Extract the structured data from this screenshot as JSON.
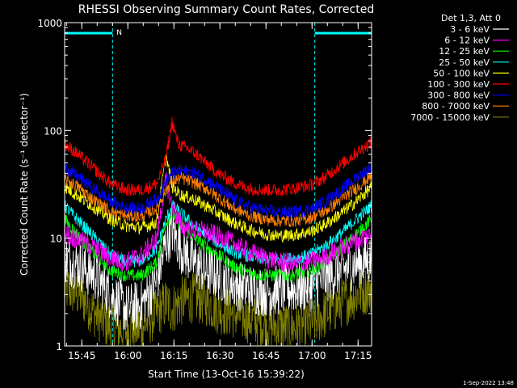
{
  "footer": {
    "timestamp": "1-Sep-2022 13:48"
  },
  "chart_data": {
    "type": "line",
    "title": "RHESSI Observing Summary Count Rates, Corrected",
    "xlabel": "Start Time (13-Oct-16 15:39:22)",
    "ylabel": "Corrected Count Rate (s⁻¹ detector⁻¹)",
    "yscale": "log",
    "ylim": [
      1,
      1000
    ],
    "x_unit": "minutes after 15:39:22",
    "xlim": [
      0,
      100
    ],
    "x_ticks": [
      {
        "label": "15:45",
        "value": 5.6
      },
      {
        "label": "16:00",
        "value": 20.6
      },
      {
        "label": "16:15",
        "value": 35.6
      },
      {
        "label": "16:30",
        "value": 50.6
      },
      {
        "label": "16:45",
        "value": 65.6
      },
      {
        "label": "17:00",
        "value": 80.6
      },
      {
        "label": "17:15",
        "value": 95.6
      }
    ],
    "y_ticks": [
      {
        "label": "1",
        "value": 1
      },
      {
        "label": "10",
        "value": 10
      },
      {
        "label": "100",
        "value": 100
      },
      {
        "label": "1000",
        "value": 1000
      }
    ],
    "legend": {
      "title": "Det 1,3, Att 0",
      "placement": "right"
    },
    "night_flag": "N",
    "night_intervals": [
      [
        0,
        15.6
      ],
      [
        81.5,
        100
      ]
    ],
    "series": [
      {
        "name": "3 - 6 keV",
        "color": "#ffffff",
        "x": [
          0,
          5,
          10,
          15,
          20,
          25,
          30,
          33,
          35,
          38,
          42,
          46,
          50,
          55,
          60,
          65,
          70,
          75,
          80,
          85,
          90,
          95,
          100
        ],
        "y": [
          6.5,
          5.5,
          4.5,
          3.0,
          2.2,
          2.4,
          4.0,
          9.0,
          12.0,
          8.0,
          6.0,
          5.0,
          4.5,
          3.8,
          3.4,
          3.2,
          3.3,
          3.4,
          3.6,
          4.3,
          5.0,
          5.8,
          6.5
        ]
      },
      {
        "name": "6 - 12 keV",
        "color": "#ff00ff",
        "x": [
          0,
          5,
          10,
          15,
          20,
          25,
          30,
          33,
          35,
          38,
          42,
          46,
          50,
          55,
          60,
          65,
          70,
          75,
          80,
          85,
          90,
          95,
          100
        ],
        "y": [
          11.0,
          9.5,
          8.0,
          6.5,
          6.0,
          7.0,
          10.0,
          35.0,
          20.0,
          13.0,
          12.0,
          11.5,
          10.5,
          9.0,
          7.5,
          6.6,
          6.0,
          5.8,
          6.0,
          6.8,
          8.0,
          9.5,
          11.0
        ]
      },
      {
        "name": "12 - 25 keV",
        "color": "#00ff00",
        "x": [
          0,
          5,
          10,
          15,
          20,
          25,
          30,
          33,
          35,
          38,
          42,
          46,
          50,
          55,
          60,
          65,
          70,
          75,
          80,
          85,
          90,
          95,
          100
        ],
        "y": [
          15.0,
          10.0,
          7.0,
          5.0,
          4.5,
          4.5,
          6.0,
          14.0,
          17.0,
          13.0,
          10.0,
          8.5,
          7.0,
          5.5,
          4.8,
          4.5,
          4.5,
          4.6,
          5.0,
          6.0,
          8.0,
          11.0,
          15.0
        ]
      },
      {
        "name": "25 - 50 keV",
        "color": "#00ffff",
        "x": [
          0,
          5,
          10,
          15,
          20,
          25,
          30,
          33,
          35,
          38,
          42,
          46,
          50,
          55,
          60,
          65,
          70,
          75,
          80,
          85,
          90,
          95,
          100
        ],
        "y": [
          20.0,
          14.0,
          10.0,
          7.0,
          6.0,
          6.2,
          8.0,
          15.0,
          20.0,
          17.0,
          13.0,
          11.0,
          9.0,
          7.5,
          6.8,
          6.5,
          6.4,
          6.5,
          7.0,
          8.5,
          11.0,
          15.0,
          20.0
        ]
      },
      {
        "name": "50 - 100 keV",
        "color": "#ffff00",
        "x": [
          0,
          5,
          10,
          15,
          20,
          25,
          30,
          33,
          35,
          38,
          42,
          46,
          50,
          55,
          60,
          65,
          70,
          75,
          80,
          85,
          90,
          95,
          100
        ],
        "y": [
          30.0,
          24.0,
          19.0,
          15.0,
          13.0,
          12.5,
          14.0,
          60.0,
          30.0,
          25.0,
          23.0,
          20.0,
          17.0,
          14.0,
          12.0,
          11.0,
          10.5,
          10.8,
          11.5,
          13.5,
          17.0,
          22.0,
          30.0
        ]
      },
      {
        "name": "100 - 300 keV",
        "color": "#ff0000",
        "x": [
          0,
          5,
          10,
          15,
          20,
          25,
          30,
          33,
          35,
          37,
          38,
          40,
          43,
          46,
          50,
          55,
          60,
          65,
          70,
          75,
          80,
          85,
          90,
          95,
          100
        ],
        "y": [
          75.0,
          58.0,
          43.0,
          32.0,
          28.0,
          28.0,
          32.0,
          55.0,
          120.0,
          75.0,
          72.0,
          68.0,
          60.0,
          50.0,
          40.0,
          33.0,
          29.0,
          28.0,
          28.0,
          29.0,
          31.0,
          37.0,
          48.0,
          62.0,
          78.0
        ]
      },
      {
        "name": "300 - 800 keV",
        "color": "#0000ff",
        "x": [
          0,
          5,
          10,
          15,
          20,
          25,
          30,
          33,
          35,
          38,
          42,
          46,
          50,
          55,
          60,
          65,
          70,
          75,
          80,
          85,
          90,
          95,
          100
        ],
        "y": [
          45.0,
          36.0,
          28.0,
          22.0,
          19.0,
          19.0,
          23.0,
          33.0,
          40.0,
          43.0,
          40.0,
          35.0,
          29.0,
          23.0,
          19.5,
          18.0,
          17.5,
          17.5,
          18.5,
          22.0,
          28.0,
          36.0,
          47.0
        ]
      },
      {
        "name": "800 - 7000 keV",
        "color": "#ff8000",
        "x": [
          0,
          5,
          10,
          15,
          20,
          25,
          30,
          33,
          35,
          38,
          42,
          46,
          50,
          55,
          60,
          65,
          70,
          75,
          80,
          85,
          90,
          95,
          100
        ],
        "y": [
          36.0,
          29.0,
          22.0,
          18.0,
          16.0,
          16.0,
          19.0,
          28.0,
          34.0,
          36.0,
          33.0,
          29.0,
          24.0,
          19.0,
          16.5,
          15.0,
          14.5,
          14.5,
          15.5,
          18.0,
          23.0,
          29.0,
          38.0
        ]
      },
      {
        "name": "7000 - 15000 keV",
        "color": "#808000",
        "x": [
          0,
          5,
          10,
          15,
          20,
          25,
          30,
          33,
          35,
          38,
          42,
          46,
          50,
          55,
          60,
          65,
          70,
          75,
          80,
          85,
          90,
          95,
          100
        ],
        "y": [
          3.5,
          3.0,
          2.0,
          1.5,
          1.4,
          1.5,
          2.0,
          2.5,
          2.2,
          2.6,
          2.8,
          2.6,
          2.2,
          2.0,
          1.8,
          1.6,
          1.5,
          1.5,
          1.6,
          2.0,
          2.5,
          3.0,
          3.5
        ]
      }
    ]
  }
}
